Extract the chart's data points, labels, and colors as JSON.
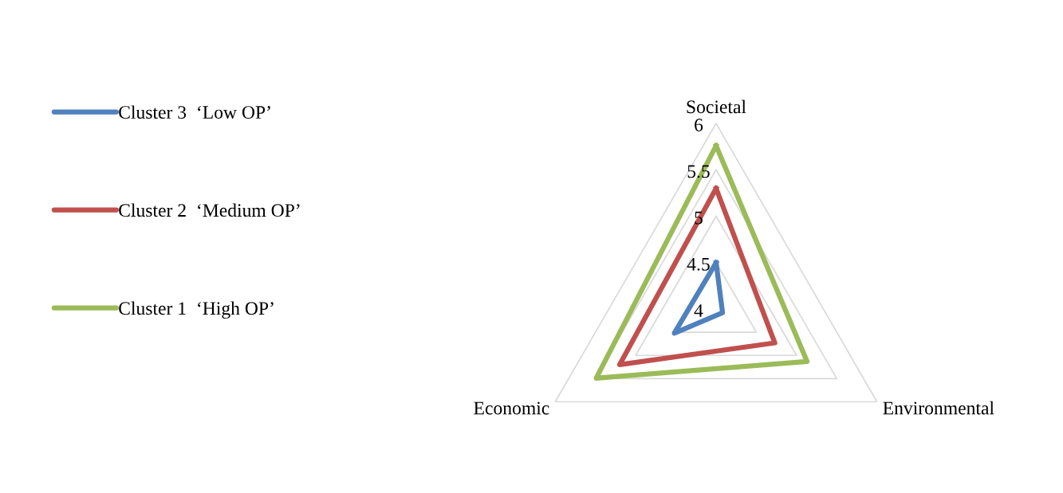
{
  "chart_data": {
    "type": "radar",
    "categories": [
      "Societal",
      "Environmental",
      "Economic"
    ],
    "series": [
      {
        "name": "Cluster 3  ‘Low OP’",
        "color": "#4f81bd",
        "values": [
          4.5,
          4.08,
          4.52
        ]
      },
      {
        "name": "Cluster 2  ‘Medium OP’",
        "color": "#c0504d",
        "values": [
          5.3,
          4.73,
          5.2
        ]
      },
      {
        "name": "Cluster 1  ‘High OP’",
        "color": "#9bbb59",
        "values": [
          5.76,
          5.13,
          5.49
        ]
      }
    ],
    "ylim": [
      4,
      6
    ],
    "yticks": [
      4,
      4.5,
      5,
      5.5,
      6
    ],
    "grid": true,
    "legend": "left",
    "marker": "none",
    "line_style": "solid"
  }
}
